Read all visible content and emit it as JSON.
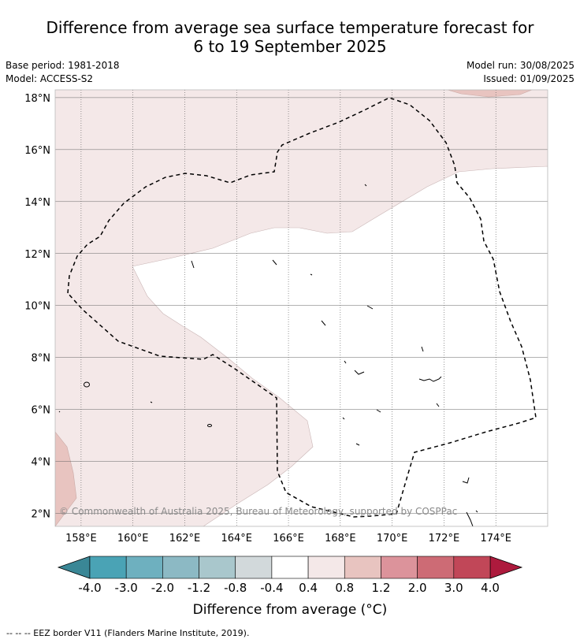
{
  "title": {
    "line1": "Difference from average sea surface temperature forecast for",
    "line2": "6 to 19 September 2025"
  },
  "meta": {
    "base_period": "Base period: 1981-2018",
    "model": "Model: ACCESS-S2",
    "model_run": "Model run: 30/08/2025",
    "issued": "Issued: 01/09/2025"
  },
  "map": {
    "lon_range": [
      157,
      176
    ],
    "lat_range": [
      1.5,
      18.3
    ],
    "lon_ticks": [
      "158°E",
      "160°E",
      "162°E",
      "164°E",
      "166°E",
      "168°E",
      "170°E",
      "172°E",
      "174°E"
    ],
    "lon_tick_values": [
      158,
      160,
      162,
      164,
      166,
      168,
      170,
      172,
      174
    ],
    "lat_ticks": [
      "2°N",
      "4°N",
      "6°N",
      "8°N",
      "10°N",
      "12°N",
      "14°N",
      "16°N",
      "18°N"
    ],
    "lat_tick_values": [
      2,
      4,
      6,
      8,
      10,
      12,
      14,
      16,
      18
    ],
    "grid": true,
    "copyright": "© Commonwealth of Australia 2025, Bureau of Meteorology, supported by COSPPac"
  },
  "colorbar": {
    "ticks": [
      "-4.0",
      "-3.0",
      "-2.0",
      "-1.2",
      "-0.8",
      "-0.4",
      "0.4",
      "0.8",
      "1.2",
      "2.0",
      "3.0",
      "4.0"
    ],
    "colors": [
      "#4aa3b5",
      "#6eb0bf",
      "#8cb9c4",
      "#a9c7cc",
      "#d2d9db",
      "#ffffff",
      "#f4e8e8",
      "#e8c4c0",
      "#dc939b",
      "#cd6b75",
      "#c14758"
    ],
    "under_color": "#3a8796",
    "over_color": "#ad1a3d",
    "label": "Difference from average (°C)"
  },
  "footer": "-- -- -- EEZ border V11 (Flanders Marine Institute, 2019)."
}
